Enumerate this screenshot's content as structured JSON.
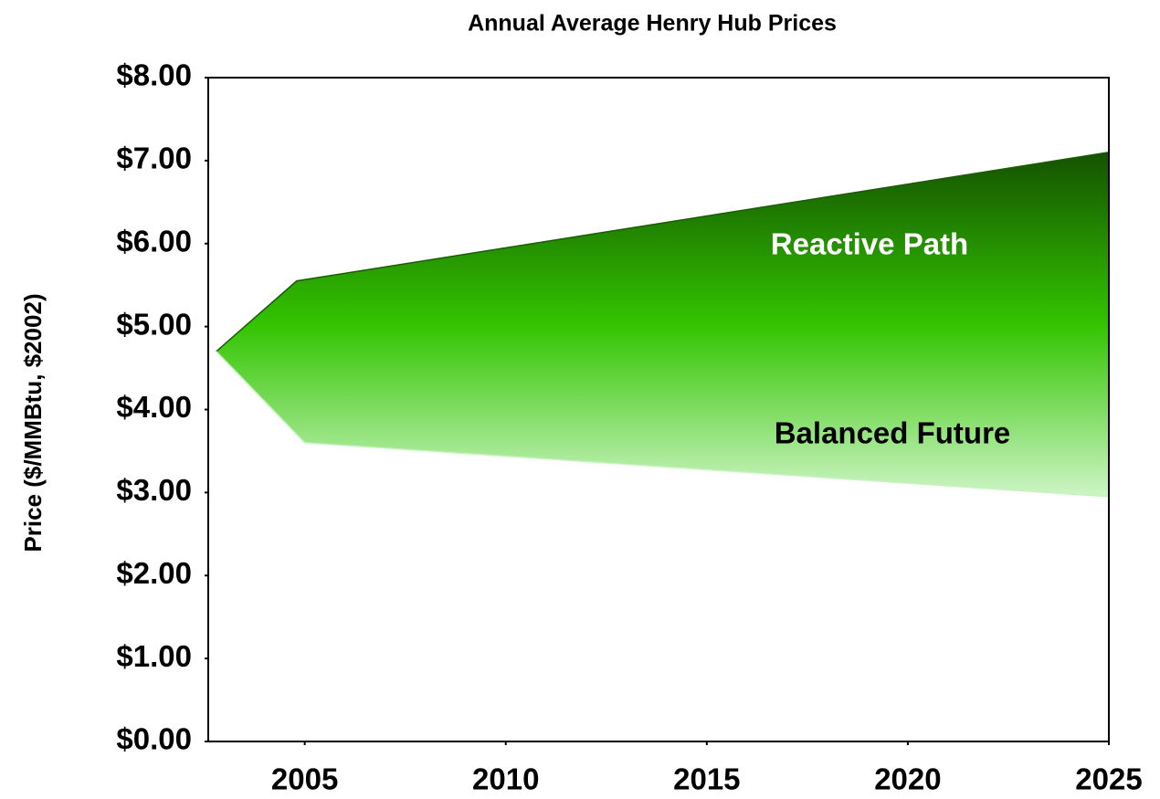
{
  "chart_data": {
    "type": "area-band",
    "title": "Annual Average Henry Hub Prices",
    "y_label": "Price ($/MMBtu, $2002)",
    "xlim": [
      2002.6,
      2025
    ],
    "xticks": [
      2005,
      2010,
      2015,
      2020,
      2025
    ],
    "ylim": [
      0,
      8
    ],
    "yticks": [
      {
        "value": 0,
        "label": "$0.00"
      },
      {
        "value": 1,
        "label": "$1.00"
      },
      {
        "value": 2,
        "label": "$2.00"
      },
      {
        "value": 3,
        "label": "$3.00"
      },
      {
        "value": 4,
        "label": "$4.00"
      },
      {
        "value": 5,
        "label": "$5.00"
      },
      {
        "value": 6,
        "label": "$6.00"
      },
      {
        "value": 7,
        "label": "$7.00"
      },
      {
        "value": 8,
        "label": "$8.00"
      }
    ],
    "series": [
      {
        "name": "Reactive Path",
        "color": "#1a5c00",
        "x": [
          2002.8,
          2004.8,
          2025
        ],
        "values": [
          4.7,
          5.55,
          7.1
        ]
      },
      {
        "name": "Balanced Future",
        "color": "#c8f3c0",
        "x": [
          2002.8,
          2005,
          2025
        ],
        "values": [
          4.7,
          3.6,
          2.95
        ]
      }
    ]
  }
}
